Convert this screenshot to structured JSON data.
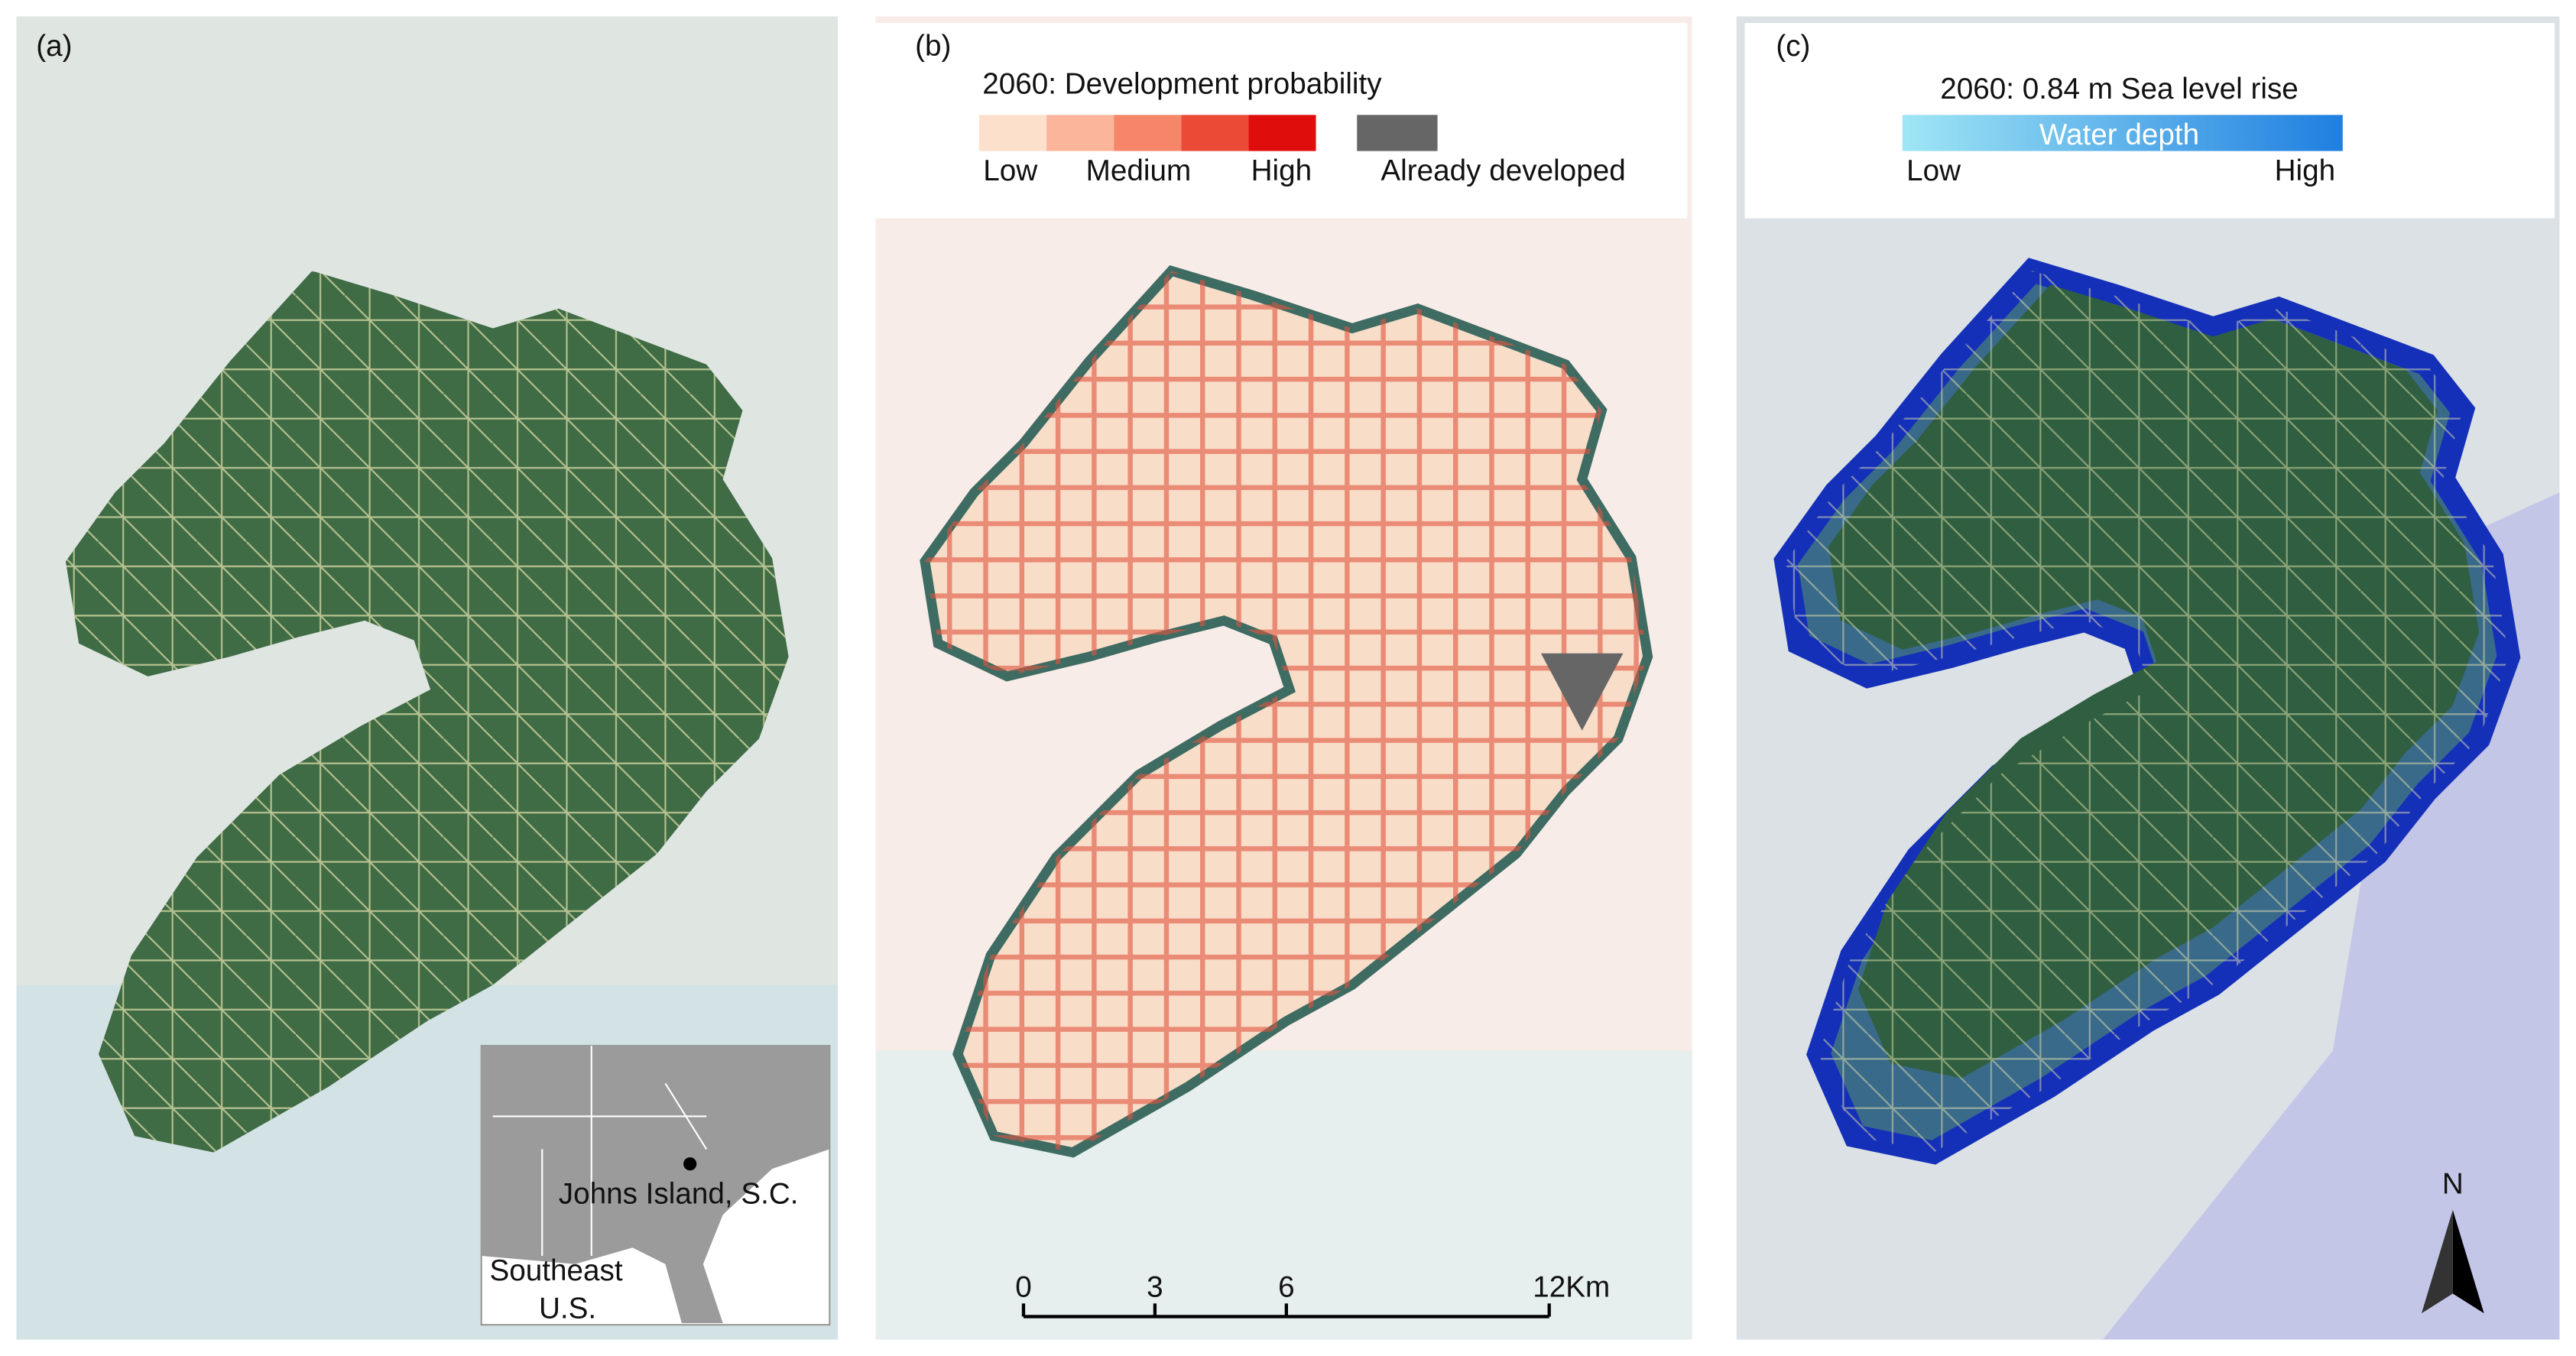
{
  "panels": [
    {
      "label": "(a)",
      "inset": {
        "place": "Johns Island, S.C.",
        "region": [
          "Southeast",
          "U.S."
        ]
      }
    },
    {
      "label": "(b)",
      "legend": {
        "title": "2060: Development probability",
        "classes": [
          "Low",
          "Medium",
          "High"
        ],
        "developed": "Already developed"
      },
      "scale_bar": {
        "ticks": [
          0,
          3,
          6,
          12
        ],
        "unit": "Km"
      }
    },
    {
      "label": "(c)",
      "legend": {
        "title": "2060: 0.84 m Sea level rise",
        "bar": "Water depth",
        "low": "Low",
        "high": "High"
      },
      "north": "N"
    }
  ]
}
